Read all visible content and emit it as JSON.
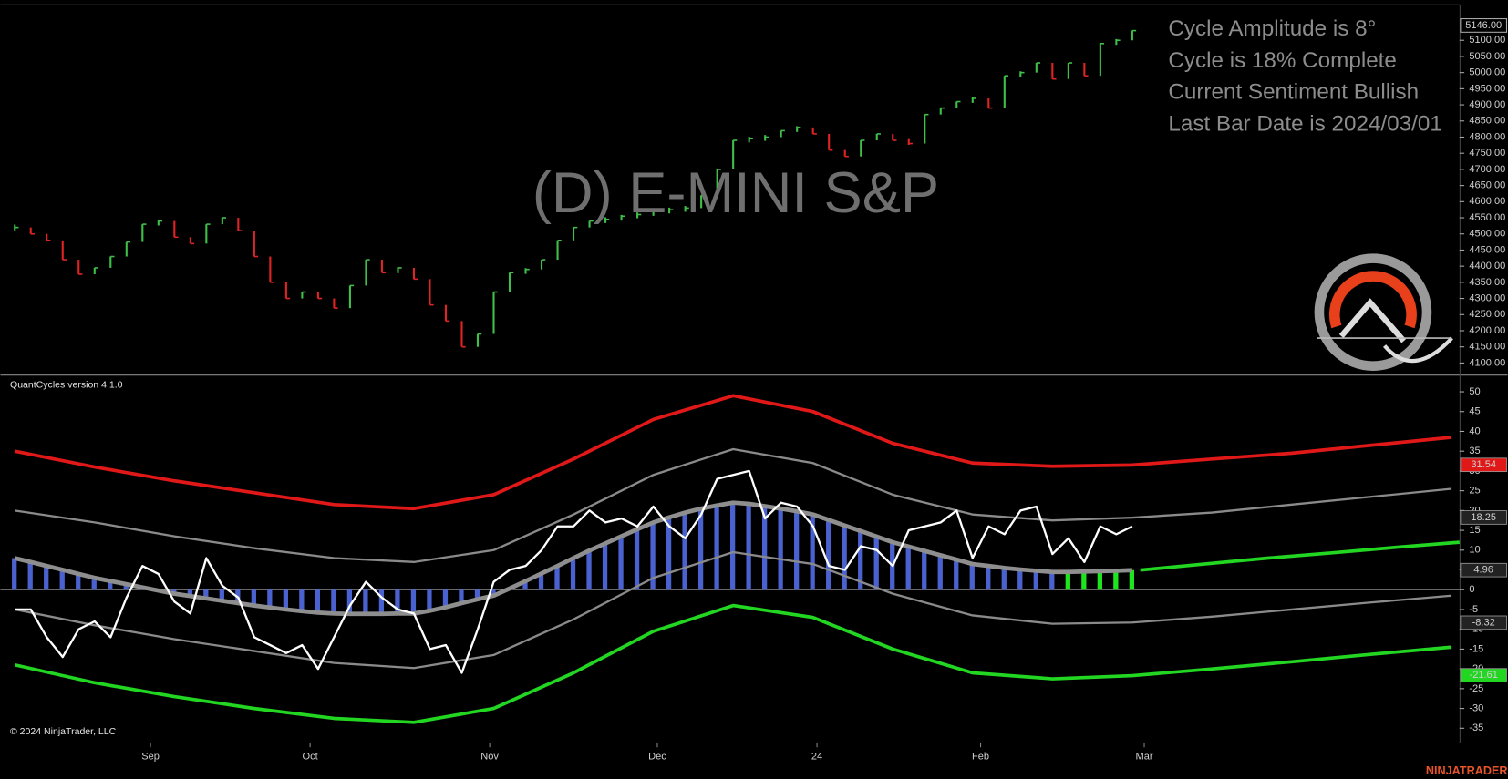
{
  "chart_data": [
    {
      "type": "price",
      "title": "(D) E-MINI S&P",
      "annotations": [
        "Cycle Amplitude is 8°",
        "Cycle is 18% Complete",
        "Current Sentiment Bullish",
        "Last Bar Date is 2024/03/01"
      ],
      "x": [
        0,
        2,
        4,
        6,
        8,
        10,
        12,
        14,
        16,
        18,
        20,
        22,
        24,
        26,
        28,
        30,
        32,
        34,
        36,
        38,
        40,
        42,
        44,
        46,
        48,
        50,
        52,
        54,
        56,
        58,
        60,
        62,
        64,
        66,
        68,
        70,
        72,
        74,
        76,
        78,
        80,
        82,
        84,
        86,
        88,
        90,
        92,
        94,
        96,
        98,
        100,
        102,
        104,
        106,
        108,
        110,
        112,
        114,
        116,
        118,
        120,
        122,
        124,
        126,
        128,
        130,
        132,
        134,
        136,
        138,
        140
      ],
      "values": [
        4520,
        4500,
        4480,
        4420,
        4375,
        4395,
        4430,
        4475,
        4530,
        4540,
        4490,
        4470,
        4530,
        4550,
        4510,
        4430,
        4350,
        4300,
        4320,
        4300,
        4270,
        4340,
        4420,
        4380,
        4395,
        4360,
        4280,
        4230,
        4150,
        4190,
        4320,
        4380,
        4390,
        4420,
        4480,
        4520,
        4540,
        4545,
        4555,
        4560,
        4570,
        4575,
        4580,
        4620,
        4700,
        4790,
        4795,
        4800,
        4820,
        4830,
        4810,
        4760,
        4740,
        4790,
        4810,
        4790,
        4780,
        4870,
        4890,
        4910,
        4920,
        4890,
        4990,
        5000,
        5030,
        4980,
        5030,
        4990,
        5090,
        5100,
        5130
      ],
      "up_color": "#3fbf4a",
      "down_color": "#e02424",
      "last_price": {
        "value": 5146,
        "label": "5146.00"
      },
      "xlim": [
        -1.8,
        181
      ],
      "ylim": [
        4064,
        5210
      ],
      "yticks": [
        {
          "value": 4100,
          "label": "4100.00"
        },
        {
          "value": 4150,
          "label": "4150.00"
        },
        {
          "value": 4200,
          "label": "4200.00"
        },
        {
          "value": 4250,
          "label": "4250.00"
        },
        {
          "value": 4300,
          "label": "4300.00"
        },
        {
          "value": 4350,
          "label": "4350.00"
        },
        {
          "value": 4400,
          "label": "4400.00"
        },
        {
          "value": 4450,
          "label": "4450.00"
        },
        {
          "value": 4500,
          "label": "4500.00"
        },
        {
          "value": 4550,
          "label": "4550.00"
        },
        {
          "value": 4600,
          "label": "4600.00"
        },
        {
          "value": 4650,
          "label": "4650.00"
        },
        {
          "value": 4700,
          "label": "4700.00"
        },
        {
          "value": 4750,
          "label": "4750.00"
        },
        {
          "value": 4800,
          "label": "4800.00"
        },
        {
          "value": 4850,
          "label": "4850.00"
        },
        {
          "value": 4900,
          "label": "4900.00"
        },
        {
          "value": 4950,
          "label": "4950.00"
        },
        {
          "value": 5000,
          "label": "5000.00"
        },
        {
          "value": 5050,
          "label": "5050.00"
        },
        {
          "value": 5100,
          "label": "5100.00"
        }
      ],
      "grid": false
    },
    {
      "type": "line",
      "title": "QuantCycles version 4.1.0",
      "xlim": [
        -1.8,
        181
      ],
      "ylim": [
        -38.6,
        54.1
      ],
      "yticks": [
        -35,
        -30,
        -25,
        -20,
        -15,
        -10,
        -5,
        0,
        5,
        10,
        15,
        20,
        25,
        30,
        35,
        40,
        45,
        50
      ],
      "baseline": 0,
      "xticks": [
        {
          "value": 17,
          "label": "Sep"
        },
        {
          "value": 37,
          "label": "Oct"
        },
        {
          "value": 59.5,
          "label": "Nov"
        },
        {
          "value": 80.5,
          "label": "Dec"
        },
        {
          "value": 100.5,
          "label": "24"
        },
        {
          "value": 121,
          "label": "Feb"
        },
        {
          "value": 141.5,
          "label": "Mar"
        }
      ],
      "grid": false,
      "series": [
        {
          "color": "#e01818",
          "width": 3.5,
          "last_value": 31.54,
          "marker_color": "#e01818",
          "x": [
            0,
            10,
            20,
            30,
            40,
            50,
            60,
            70,
            80,
            90,
            100,
            110,
            120,
            130,
            140,
            150,
            160,
            170,
            180
          ],
          "values": [
            35,
            31,
            27.5,
            24.5,
            21.5,
            20.5,
            24,
            33,
            43,
            49,
            45,
            37,
            32,
            31.2,
            31.5,
            33,
            34.5,
            36.5,
            38.5
          ]
        },
        {
          "color": "#8a8a8a",
          "width": 2.2,
          "last_value": 18.25,
          "marker_color": "#222222",
          "x": [
            0,
            10,
            20,
            30,
            40,
            50,
            60,
            70,
            80,
            90,
            100,
            110,
            120,
            130,
            140,
            150,
            160,
            170,
            180
          ],
          "values": [
            20,
            17,
            13.5,
            10.5,
            8,
            7,
            10,
            19,
            29,
            35.5,
            32,
            24,
            19,
            17.5,
            18.2,
            19.5,
            21.5,
            23.5,
            25.5
          ]
        },
        {
          "color": "#8a8a8a",
          "width": 2.2,
          "last_value": -8.32,
          "marker_color": "#222222",
          "x": [
            0,
            10,
            20,
            30,
            40,
            50,
            60,
            70,
            80,
            90,
            100,
            110,
            120,
            130,
            140,
            150,
            160,
            170,
            180
          ],
          "values": [
            -5,
            -9,
            -12.5,
            -15.5,
            -18.5,
            -19.8,
            -16.5,
            -7.5,
            3,
            9.5,
            6.5,
            -1,
            -6.5,
            -8.6,
            -8.3,
            -6.8,
            -5,
            -3.2,
            -1.5
          ]
        },
        {
          "color": "#22d622",
          "width": 3.5,
          "last_value": -21.61,
          "marker_color": "#22d622",
          "x": [
            0,
            10,
            20,
            30,
            40,
            50,
            60,
            70,
            80,
            90,
            100,
            110,
            120,
            130,
            140,
            150,
            160,
            170,
            180
          ],
          "values": [
            -19,
            -23.5,
            -27,
            -30,
            -32.5,
            -33.5,
            -30,
            -21,
            -10.5,
            -4,
            -7,
            -15,
            -21,
            -22.5,
            -21.7,
            -20,
            -18.2,
            -16.3,
            -14.5
          ]
        },
        {
          "color": "#8e8e8e",
          "width": 4.5,
          "last_value": 4.96,
          "marker_color": "#222222",
          "histogram": true,
          "fill_color": "#4a62cf",
          "bullish_color": "#1ee61e",
          "bullish_from": 132,
          "x": [
            0,
            2,
            4,
            6,
            8,
            10,
            12,
            14,
            16,
            18,
            20,
            22,
            24,
            26,
            28,
            30,
            32,
            34,
            36,
            38,
            40,
            42,
            44,
            46,
            48,
            50,
            52,
            54,
            56,
            58,
            60,
            62,
            64,
            66,
            68,
            70,
            72,
            74,
            76,
            78,
            80,
            82,
            84,
            86,
            88,
            90,
            92,
            94,
            96,
            98,
            100,
            102,
            104,
            106,
            108,
            110,
            112,
            114,
            116,
            118,
            120,
            122,
            124,
            126,
            128,
            130,
            132,
            134,
            136,
            138,
            140
          ],
          "values": [
            8,
            7,
            6,
            5,
            4,
            3,
            2.2,
            1.4,
            0.6,
            -0.2,
            -1,
            -1.6,
            -2.2,
            -2.8,
            -3.4,
            -4,
            -4.5,
            -5,
            -5.4,
            -5.8,
            -6,
            -6.1,
            -6.1,
            -6.1,
            -6,
            -6,
            -5.3,
            -4.4,
            -3.4,
            -2.4,
            -1.5,
            0.3,
            2.2,
            4.1,
            6,
            8,
            9.9,
            11.7,
            13.5,
            15.3,
            17,
            18.3,
            19.5,
            20.5,
            21.3,
            22,
            21.7,
            21.1,
            20.5,
            19.8,
            19,
            17.6,
            16.2,
            14.8,
            13.4,
            12,
            10.9,
            9.8,
            8.7,
            7.6,
            6.5,
            6,
            5.5,
            5.1,
            4.8,
            4.5,
            4.5,
            4.6,
            4.7,
            4.8,
            4.96
          ]
        },
        {
          "color": "#ffffff",
          "width": 2.2,
          "x": [
            0,
            2,
            4,
            6,
            8,
            10,
            12,
            14,
            16,
            18,
            20,
            22,
            24,
            26,
            28,
            30,
            32,
            34,
            36,
            38,
            40,
            42,
            44,
            46,
            48,
            50,
            52,
            54,
            56,
            58,
            60,
            62,
            64,
            66,
            68,
            70,
            72,
            74,
            76,
            78,
            80,
            82,
            84,
            86,
            88,
            90,
            92,
            94,
            96,
            98,
            100,
            102,
            104,
            106,
            108,
            110,
            112,
            114,
            116,
            118,
            120,
            122,
            124,
            126,
            128,
            130,
            132,
            134,
            136,
            138,
            140
          ],
          "values": [
            -5,
            -5,
            -12,
            -17,
            -10,
            -8,
            -12,
            -2,
            6,
            4,
            -3,
            -6,
            8,
            1,
            -2,
            -12,
            -14,
            -16,
            -14,
            -20,
            -12,
            -4,
            2,
            -2,
            -5,
            -6,
            -15,
            -14,
            -21,
            -10,
            2,
            5,
            6,
            10,
            16,
            16,
            20,
            17,
            18,
            16,
            21,
            16,
            13,
            19,
            28,
            29,
            30,
            18,
            22,
            21,
            16,
            6,
            5,
            11,
            10,
            6,
            15,
            16,
            17,
            20,
            8,
            16,
            14,
            20,
            21,
            9,
            13,
            7,
            16,
            14,
            16
          ]
        },
        {
          "color": "#22d622",
          "width": 3.5,
          "x": [
            141,
            149,
            157,
            165,
            173,
            181
          ],
          "values": [
            4.96,
            6.5,
            8,
            9.3,
            10.7,
            12
          ]
        }
      ]
    }
  ],
  "copyright": "© 2024 NinjaTrader, LLC",
  "brand": "NINJATRADER"
}
